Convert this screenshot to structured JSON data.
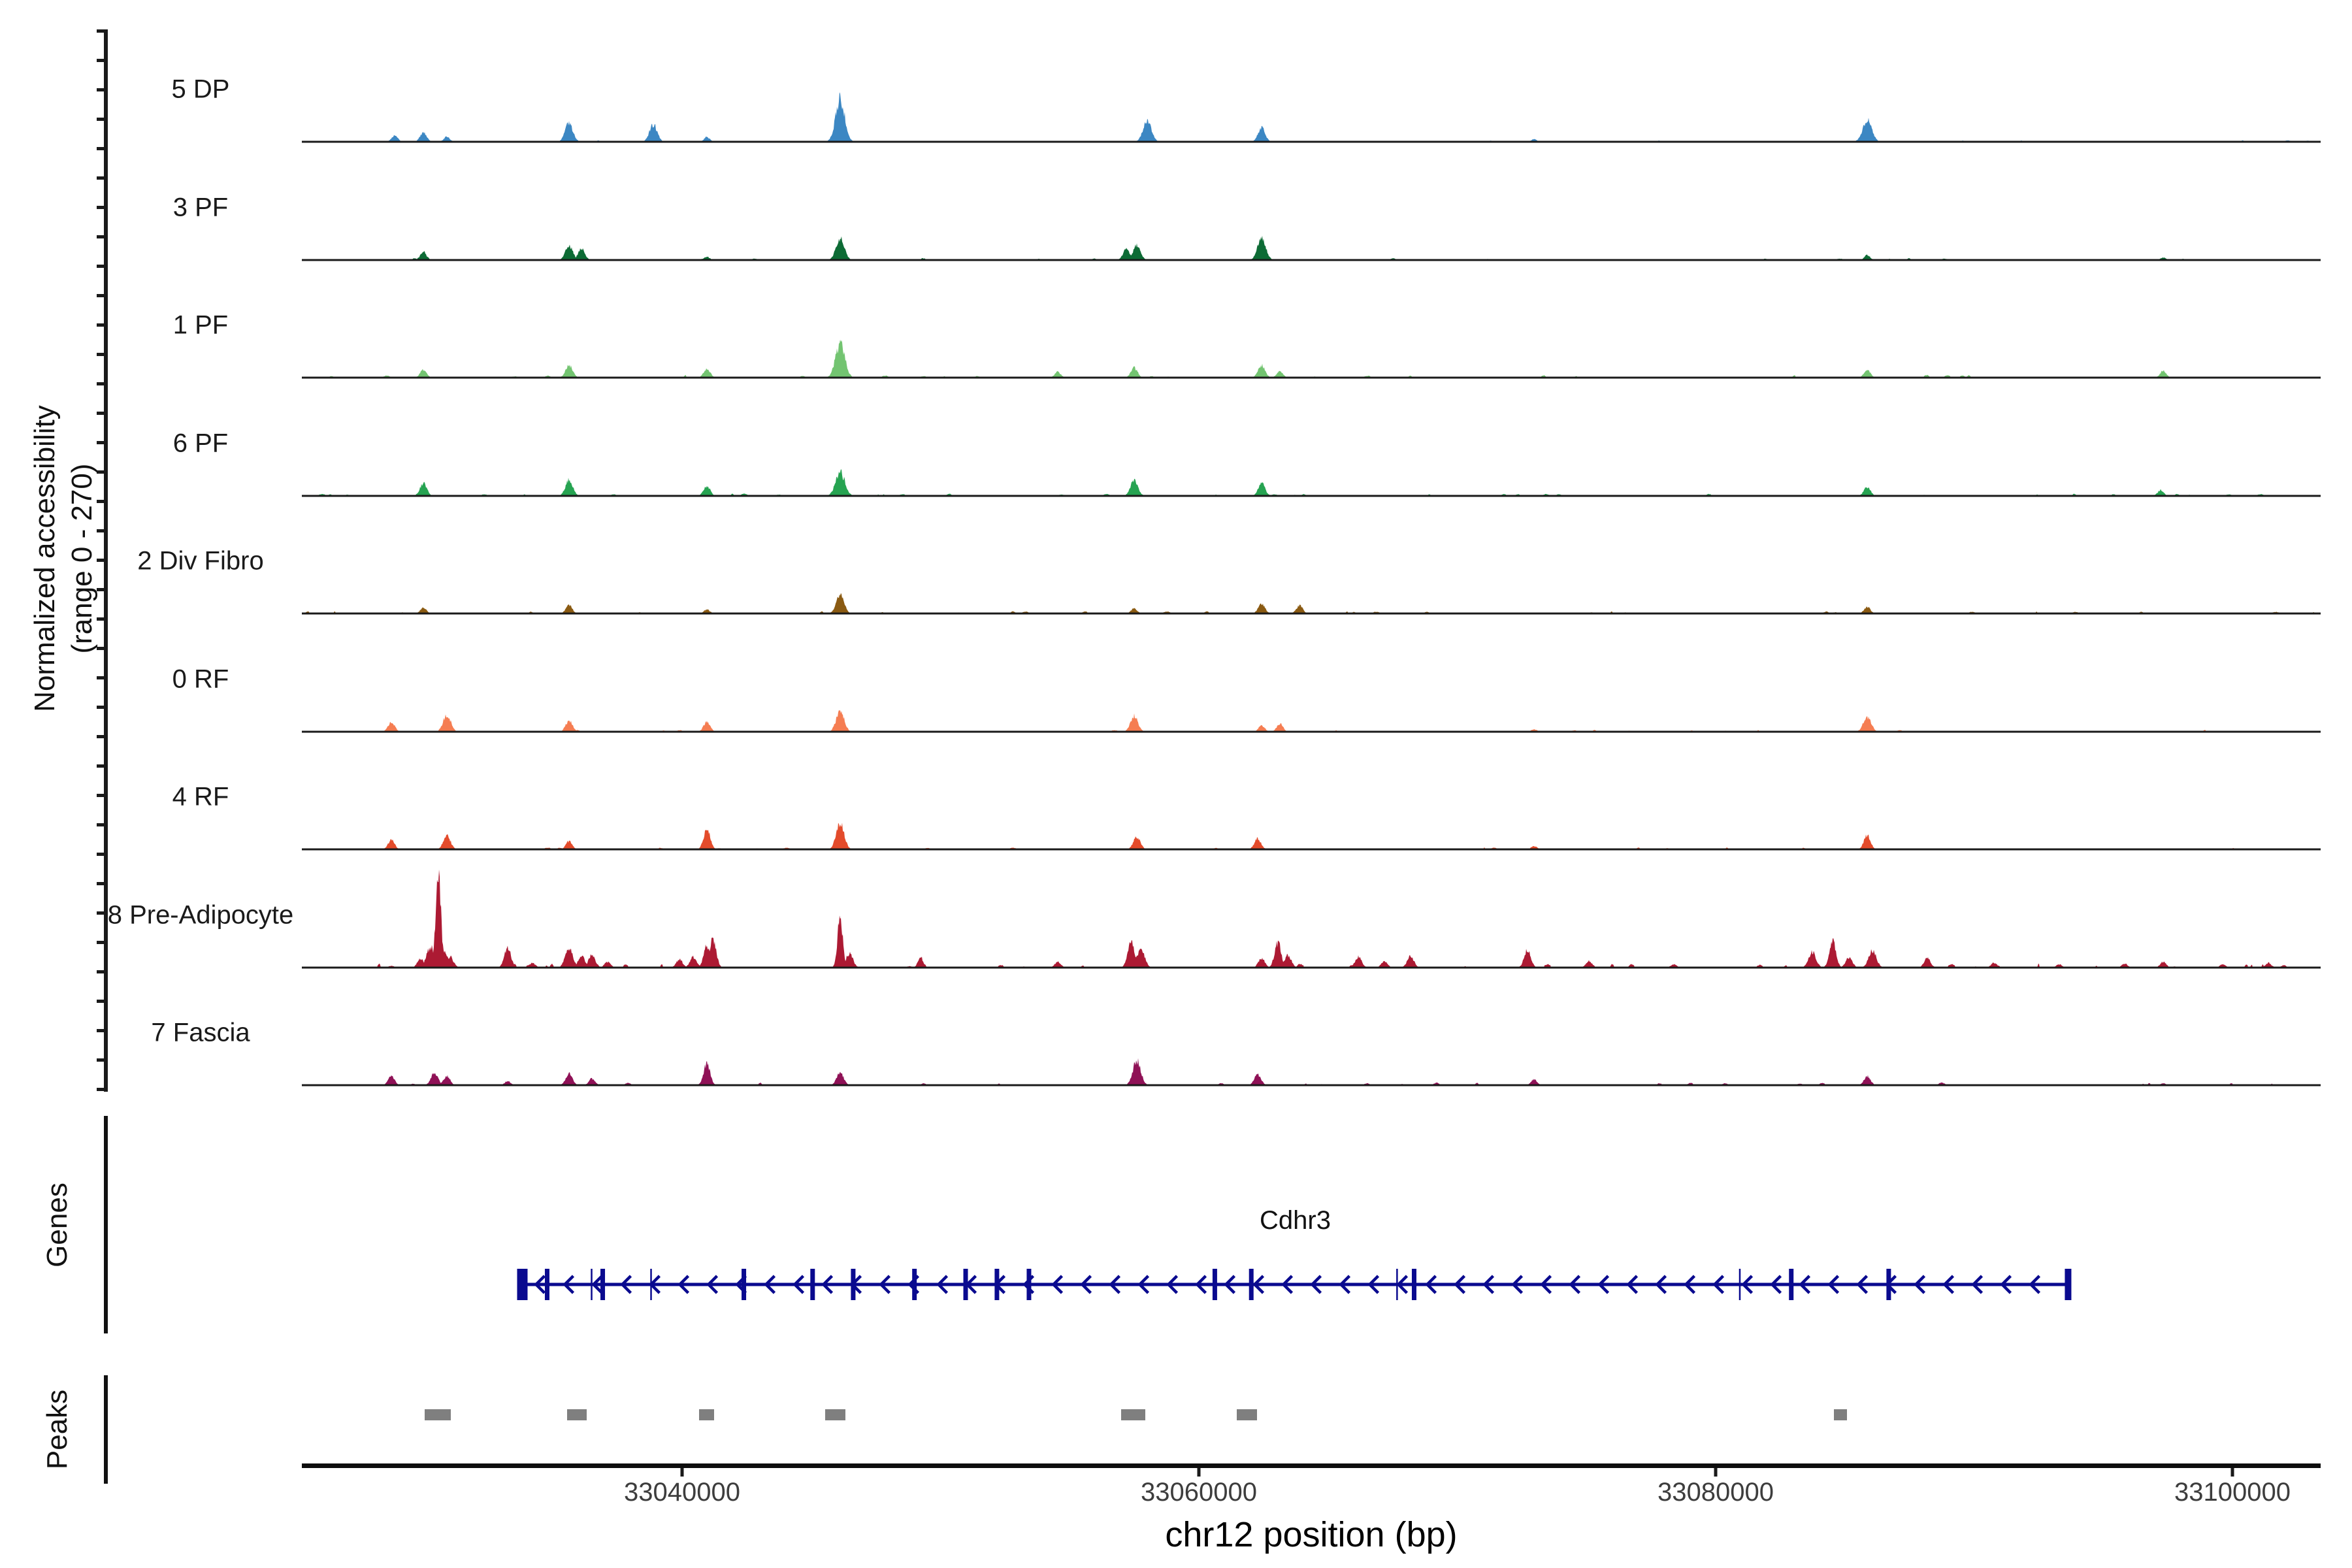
{
  "figure": {
    "y_axis_label_line1": "Normalized accessibility",
    "y_axis_label_line2": "(range 0 - 270)",
    "genes_label": "Genes",
    "peaks_label": "Peaks"
  },
  "chart_data": {
    "type": "area",
    "subtype": "genome-coverage-tracks",
    "region": {
      "chrom": "chr12",
      "start": 33025300,
      "end": 33103400
    },
    "y_range": [
      0,
      270
    ],
    "x_axis": {
      "title": "chr12 position (bp)",
      "ticks": [
        {
          "pos": 33040000,
          "label": "33040000"
        },
        {
          "pos": 33060000,
          "label": "33060000"
        },
        {
          "pos": 33080000,
          "label": "33080000"
        },
        {
          "pos": 33100000,
          "label": "33100000"
        }
      ]
    },
    "tracks": [
      {
        "label": "5 DP",
        "color": "#3c87c3",
        "noise": 4,
        "peaks": [
          [
            33028900,
            18
          ],
          [
            33030000,
            25
          ],
          [
            33030900,
            14
          ],
          [
            33035650,
            50
          ],
          [
            33038900,
            47
          ],
          [
            33040960,
            13
          ],
          [
            33046120,
            117,
            7
          ],
          [
            33058000,
            59
          ],
          [
            33062430,
            38
          ],
          [
            33072960,
            7
          ],
          [
            33085860,
            59,
            7
          ]
        ]
      },
      {
        "label": "3 PF",
        "color": "#0d6b35",
        "noise": 5,
        "peaks": [
          [
            33030000,
            22
          ],
          [
            33035650,
            40
          ],
          [
            33036130,
            31
          ],
          [
            33040960,
            9
          ],
          [
            33046120,
            59
          ],
          [
            33057200,
            29
          ],
          [
            33057600,
            40
          ],
          [
            33062430,
            59
          ],
          [
            33085860,
            13
          ],
          [
            33097320,
            7
          ]
        ]
      },
      {
        "label": "1 PF",
        "color": "#73c471",
        "noise": 7,
        "peaks": [
          [
            33030000,
            22
          ],
          [
            33035650,
            34
          ],
          [
            33040960,
            25
          ],
          [
            33046120,
            95,
            7
          ],
          [
            33054540,
            16
          ],
          [
            33057500,
            27
          ],
          [
            33062430,
            34
          ],
          [
            33063140,
            18
          ],
          [
            33085860,
            22
          ],
          [
            33097320,
            18
          ]
        ]
      },
      {
        "label": "6 PF",
        "color": "#26a351",
        "noise": 6,
        "peaks": [
          [
            33030000,
            34
          ],
          [
            33035650,
            43
          ],
          [
            33040960,
            27
          ],
          [
            33046120,
            65,
            7
          ],
          [
            33057500,
            43
          ],
          [
            33062430,
            34
          ],
          [
            33085860,
            25
          ],
          [
            33097200,
            16
          ]
        ]
      },
      {
        "label": "2 Div Fibro",
        "color": "#8a5a12",
        "noise": 6,
        "peaks": [
          [
            33030000,
            16
          ],
          [
            33035650,
            22
          ],
          [
            33040960,
            11
          ],
          [
            33046120,
            50,
            6
          ],
          [
            33057500,
            14
          ],
          [
            33062430,
            27
          ],
          [
            33063900,
            22
          ],
          [
            33085860,
            18
          ]
        ]
      },
      {
        "label": "0 RF",
        "color": "#f57d52",
        "noise": 5,
        "peaks": [
          [
            33028760,
            27
          ],
          [
            33030900,
            47
          ],
          [
            33035650,
            31
          ],
          [
            33040960,
            27
          ],
          [
            33046120,
            59,
            6
          ],
          [
            33057500,
            43
          ],
          [
            33062430,
            18
          ],
          [
            33063140,
            22
          ],
          [
            33072960,
            7
          ],
          [
            33085860,
            40,
            6
          ]
        ]
      },
      {
        "label": "4 RF",
        "color": "#e34b2b",
        "noise": 5,
        "peaks": [
          [
            33028760,
            25
          ],
          [
            33030900,
            38
          ],
          [
            33035650,
            22
          ],
          [
            33040960,
            56,
            5
          ],
          [
            33046120,
            72,
            6
          ],
          [
            33057600,
            34
          ],
          [
            33062280,
            29
          ],
          [
            33072960,
            9
          ],
          [
            33085860,
            38,
            5
          ]
        ]
      },
      {
        "label": "8 Pre-Adipocyte",
        "color": "#ac1a33",
        "noise": 11,
        "peaks": [
          [
            33028760,
            5
          ],
          [
            33029900,
            25
          ],
          [
            33030280,
            56
          ],
          [
            33030580,
            248,
            4
          ],
          [
            33030780,
            50
          ],
          [
            33031030,
            29
          ],
          [
            33033250,
            56,
            5
          ],
          [
            33034230,
            13
          ],
          [
            33035650,
            50
          ],
          [
            33036130,
            31
          ],
          [
            33036510,
            34
          ],
          [
            33037140,
            16
          ],
          [
            33039920,
            22
          ],
          [
            33040430,
            29
          ],
          [
            33040960,
            59,
            5
          ],
          [
            33041210,
            81,
            5
          ],
          [
            33046120,
            139,
            4
          ],
          [
            33046470,
            38
          ],
          [
            33049230,
            29,
            4
          ],
          [
            33054540,
            16
          ],
          [
            33057380,
            76,
            5
          ],
          [
            33057760,
            50
          ],
          [
            33062430,
            25
          ],
          [
            33063060,
            68,
            5
          ],
          [
            33063440,
            34
          ],
          [
            33066180,
            29
          ],
          [
            33067190,
            18
          ],
          [
            33068200,
            31
          ],
          [
            33072710,
            50,
            5
          ],
          [
            33075080,
            18
          ],
          [
            33078370,
            9
          ],
          [
            33083730,
            43
          ],
          [
            33084520,
            72,
            5
          ],
          [
            33085150,
            29
          ],
          [
            33086060,
            47
          ],
          [
            33088180,
            25
          ],
          [
            33090760,
            13
          ],
          [
            33093290,
            9
          ],
          [
            33095820,
            11
          ],
          [
            33097320,
            16
          ],
          [
            33099600,
            9
          ],
          [
            33101370,
            13
          ]
        ]
      },
      {
        "label": "7 Fascia",
        "color": "#8f1156",
        "noise": 7,
        "peaks": [
          [
            33028760,
            25
          ],
          [
            33030430,
            34
          ],
          [
            33030900,
            25
          ],
          [
            33033250,
            11
          ],
          [
            33035650,
            31
          ],
          [
            33036510,
            18
          ],
          [
            33040960,
            59,
            5
          ],
          [
            33046120,
            34
          ],
          [
            33057600,
            68,
            6
          ],
          [
            33062280,
            29
          ],
          [
            33072960,
            16
          ],
          [
            33085860,
            25
          ],
          [
            33088740,
            7
          ],
          [
            33097320,
            5
          ]
        ]
      }
    ],
    "gene": {
      "name": "Cdhr3",
      "strand": "-",
      "start": 33033830,
      "end": 33093630,
      "color": "#0a0a8f",
      "exons": [
        {
          "pos": 33033830,
          "type": "start"
        },
        {
          "pos": 33034790,
          "type": "exon"
        },
        {
          "pos": 33036510,
          "type": "thin"
        },
        {
          "pos": 33036940,
          "type": "exon"
        },
        {
          "pos": 33038810,
          "type": "thin"
        },
        {
          "pos": 33042400,
          "type": "exon"
        },
        {
          "pos": 33045060,
          "type": "exon"
        },
        {
          "pos": 33046630,
          "type": "exon"
        },
        {
          "pos": 33049000,
          "type": "exon"
        },
        {
          "pos": 33050980,
          "type": "exon"
        },
        {
          "pos": 33052190,
          "type": "exon"
        },
        {
          "pos": 33053430,
          "type": "exon"
        },
        {
          "pos": 33060620,
          "type": "exon"
        },
        {
          "pos": 33062030,
          "type": "exon"
        },
        {
          "pos": 33067670,
          "type": "thin"
        },
        {
          "pos": 33068330,
          "type": "exon"
        },
        {
          "pos": 33080930,
          "type": "thin"
        },
        {
          "pos": 33082920,
          "type": "exon"
        },
        {
          "pos": 33086690,
          "type": "exon"
        },
        {
          "pos": 33093630,
          "type": "end"
        }
      ]
    },
    "peaks_track": {
      "color": "#7f7f7f",
      "intervals": [
        [
          33030060,
          33031070
        ],
        [
          33035550,
          33036310
        ],
        [
          33040660,
          33041260
        ],
        [
          33045540,
          33046320
        ],
        [
          33057000,
          33057930
        ],
        [
          33061480,
          33062260
        ],
        [
          33084570,
          33085080
        ]
      ]
    }
  }
}
